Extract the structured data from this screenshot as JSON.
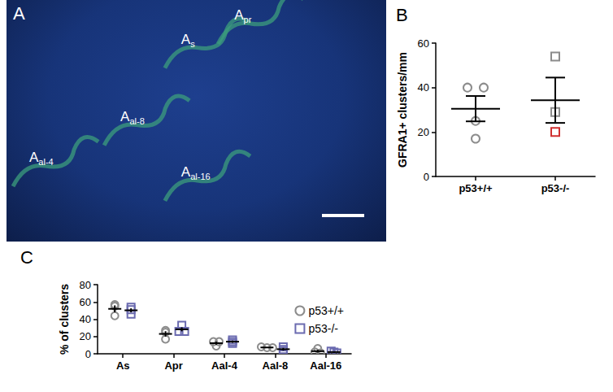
{
  "chart_data": [
    {
      "type": "image",
      "title": "A",
      "annotations": [
        "As",
        "Apr",
        "Aal-8",
        "Aal-4",
        "Aal-16"
      ]
    },
    {
      "type": "scatter",
      "title": "B",
      "categories": [
        "p53+/+",
        "p53-/-"
      ],
      "ylabel": "GFRA1+ clusters/mm",
      "ylim": [
        0,
        60
      ],
      "yticks": [
        0,
        20,
        40,
        60
      ],
      "groups": [
        {
          "marker": "circle",
          "values": [
            40,
            40,
            25,
            17
          ],
          "colors": [
            "#8c8c8c",
            "#8c8c8c",
            "#8c8c8c",
            "#8c8c8c"
          ],
          "mean": 30.5,
          "sem": 5.7
        },
        {
          "marker": "square",
          "values": [
            54,
            29,
            20
          ],
          "colors": [
            "#8c8c8c",
            "#8c8c8c",
            "#d03030"
          ],
          "mean": 34.3,
          "sem": 10.2
        }
      ]
    },
    {
      "type": "scatter",
      "title": "C",
      "categories": [
        "As",
        "Apr",
        "Aal-4",
        "Aal-8",
        "Aal-16"
      ],
      "ylabel": "% of clusters",
      "ylim": [
        0,
        80
      ],
      "yticks": [
        0,
        20,
        40,
        60,
        80
      ],
      "legend": "top-right",
      "series": [
        {
          "name": "p53+/+",
          "color": "#8c8c8c",
          "marker": "circle",
          "values": [
            [
              57,
              55,
              44
            ],
            [
              27,
              25,
              17
            ],
            [
              14,
              14,
              9
            ],
            [
              8,
              7,
              7
            ],
            [
              6,
              2,
              1
            ]
          ],
          "mean": [
            52,
            23,
            12.3,
            7.3,
            3
          ],
          "sem": [
            4,
            3.1,
            1.7,
            0.3,
            1.5
          ]
        },
        {
          "name": "p53-/-",
          "color": "#6b6bb0",
          "marker": "square",
          "values": [
            [
              54,
              51,
              46
            ],
            [
              33,
              26,
              26
            ],
            [
              16,
              12,
              14
            ],
            [
              8,
              3,
              5
            ],
            [
              3,
              2,
              1
            ]
          ],
          "mean": [
            50.3,
            28.3,
            14,
            5.3,
            2
          ],
          "sem": [
            2.3,
            2.3,
            1.2,
            1.5,
            0.6
          ]
        }
      ]
    }
  ]
}
